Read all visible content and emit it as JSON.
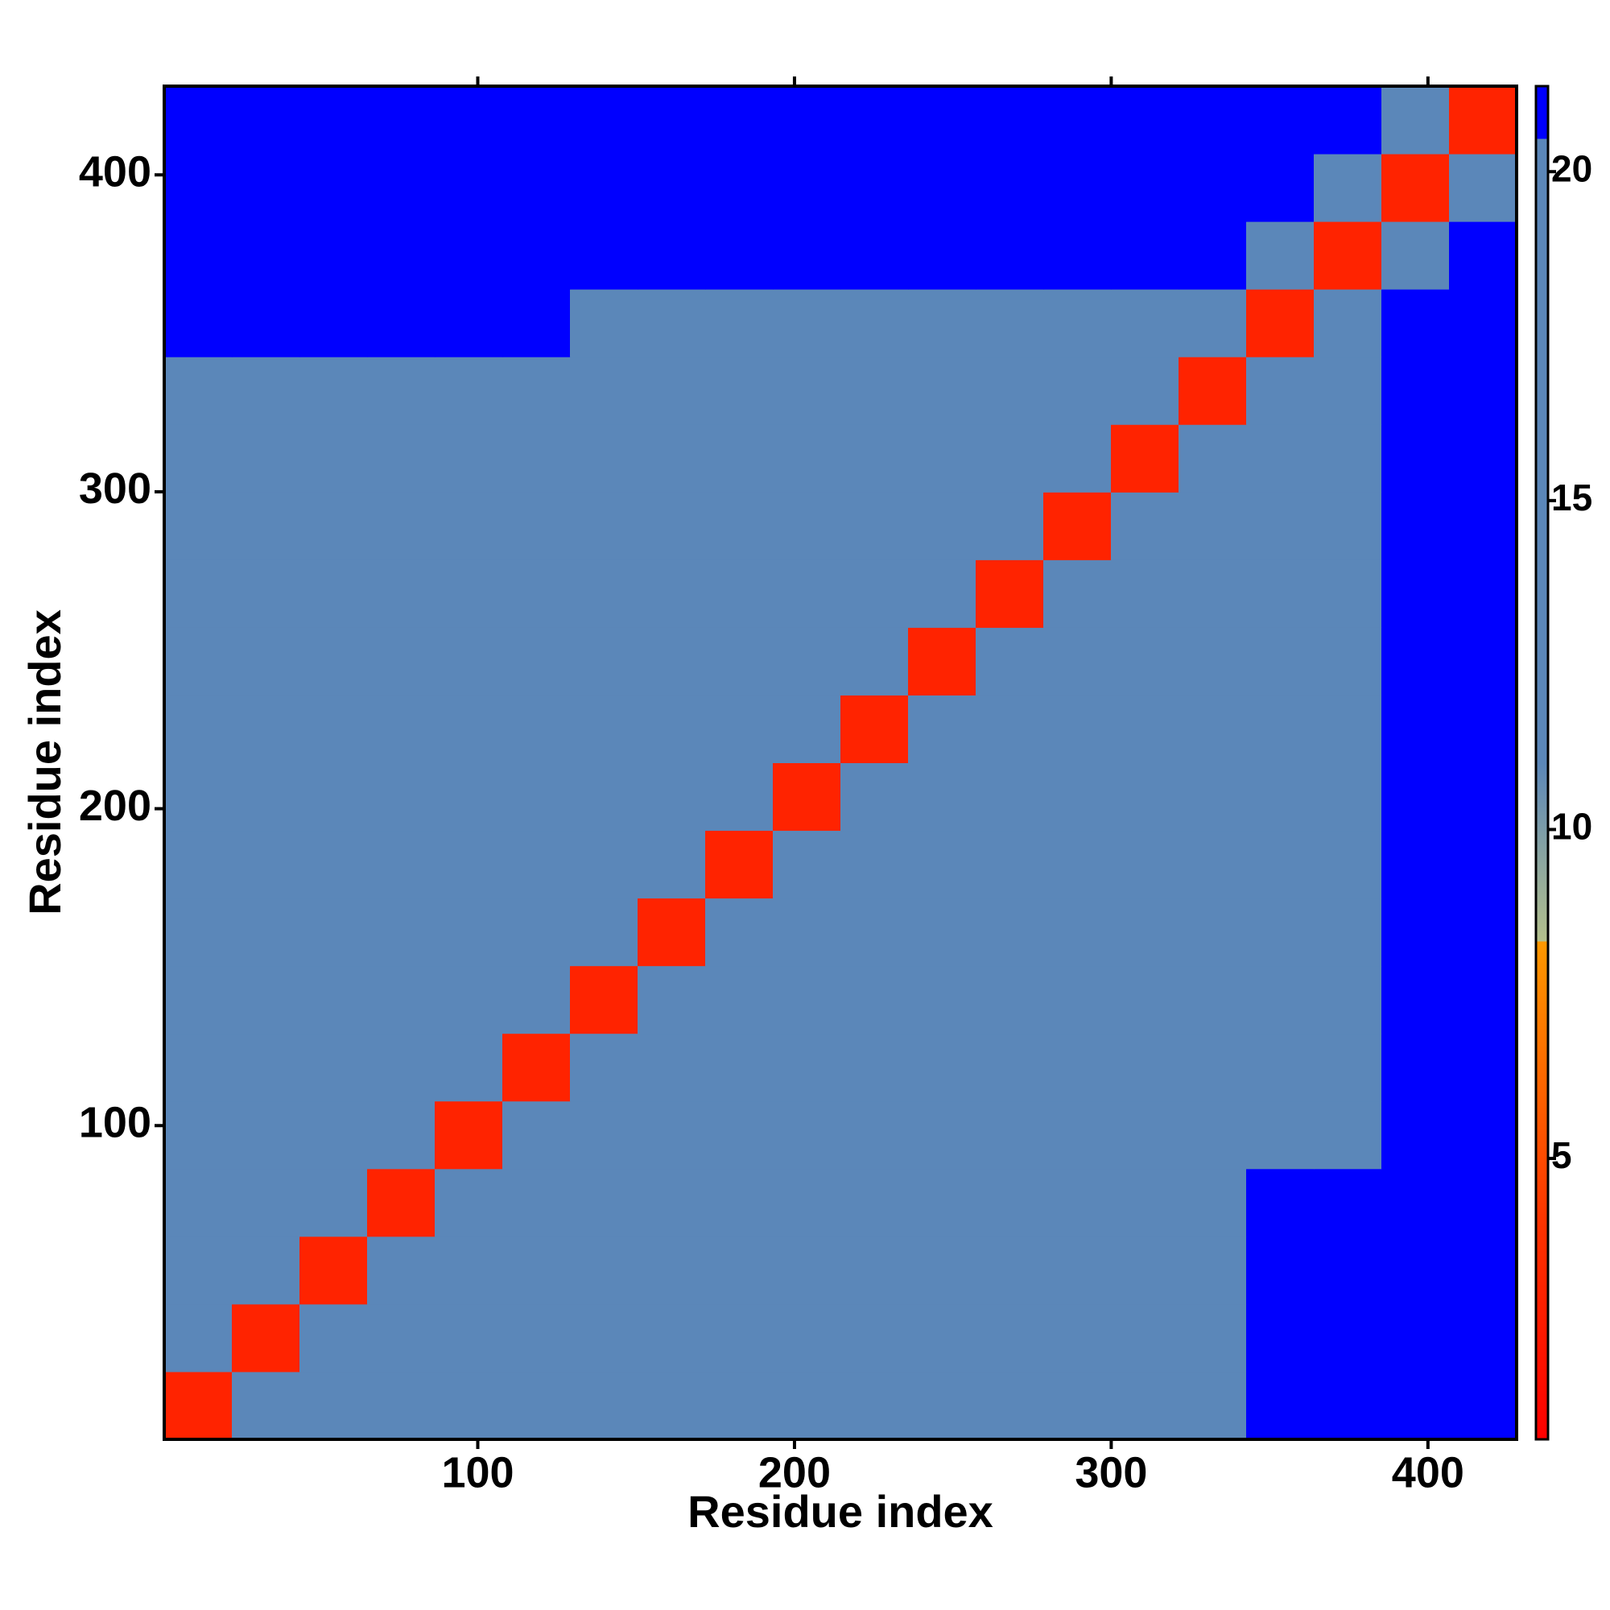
{
  "chart_data": {
    "type": "heatmap",
    "x_label": "Residue index",
    "y_label": "Residue index",
    "xlim": [
      1,
      428
    ],
    "ylim": [
      1,
      428
    ],
    "xticks": [
      100,
      200,
      300,
      400
    ],
    "yticks": [
      100,
      200,
      300,
      400
    ],
    "xbins": [
      1,
      22.35,
      43.7,
      65.05,
      86.4,
      107.75,
      129.1,
      150.45,
      171.8,
      193.15,
      214.5,
      235.85,
      257.2,
      278.55,
      299.9,
      321.25,
      342.6,
      363.95,
      385.3,
      406.65,
      428
    ],
    "ybins": [
      1,
      22.35,
      43.7,
      65.05,
      86.4,
      107.75,
      129.1,
      150.45,
      171.8,
      193.15,
      214.5,
      235.85,
      257.2,
      278.55,
      299.9,
      321.25,
      342.6,
      363.95,
      385.3,
      406.65,
      428
    ],
    "z": [
      [
        3,
        11,
        17,
        17,
        17,
        17,
        17,
        17,
        17,
        17,
        17,
        17,
        17,
        17,
        17,
        19,
        21,
        21,
        21,
        21
      ],
      [
        11,
        3,
        11,
        17,
        17,
        17,
        17,
        17,
        17,
        17,
        17,
        17,
        17,
        17,
        17,
        19,
        21,
        21,
        21,
        21
      ],
      [
        17,
        11,
        3,
        11,
        17,
        17,
        17,
        17,
        17,
        17,
        17,
        17,
        17,
        17,
        17,
        19,
        21,
        21,
        21,
        21
      ],
      [
        17,
        17,
        11,
        3,
        11,
        17,
        17,
        17,
        17,
        17,
        17,
        17,
        17,
        17,
        17,
        19,
        21,
        21,
        21,
        21
      ],
      [
        17,
        17,
        17,
        11,
        3,
        11,
        17,
        17,
        17,
        17,
        17,
        17,
        17,
        17,
        17,
        17,
        17,
        17,
        21,
        21
      ],
      [
        17,
        17,
        17,
        17,
        11,
        3,
        11,
        17,
        17,
        17,
        17,
        17,
        17,
        17,
        17,
        17,
        17,
        17,
        21,
        21
      ],
      [
        17,
        17,
        17,
        17,
        17,
        11,
        3,
        11,
        17,
        17,
        17,
        17,
        17,
        17,
        17,
        17,
        17,
        17,
        21,
        21
      ],
      [
        17,
        17,
        17,
        17,
        17,
        17,
        11,
        3,
        11,
        17,
        17,
        17,
        17,
        17,
        17,
        17,
        17,
        17,
        21,
        21
      ],
      [
        17,
        17,
        17,
        17,
        17,
        17,
        17,
        11,
        3,
        11,
        17,
        17,
        17,
        17,
        17,
        17,
        17,
        17,
        21,
        21
      ],
      [
        17,
        17,
        17,
        17,
        17,
        17,
        17,
        17,
        11,
        3,
        11,
        17,
        17,
        17,
        17,
        17,
        17,
        17,
        21,
        21
      ],
      [
        17,
        17,
        17,
        17,
        17,
        17,
        17,
        17,
        17,
        11,
        3,
        11,
        17,
        17,
        17,
        17,
        17,
        17,
        21,
        21
      ],
      [
        17,
        17,
        17,
        17,
        17,
        17,
        17,
        17,
        17,
        17,
        11,
        3,
        11,
        17,
        17,
        17,
        17,
        17,
        21,
        21
      ],
      [
        17,
        17,
        17,
        17,
        17,
        17,
        17,
        17,
        17,
        17,
        17,
        11,
        3,
        11,
        17,
        17,
        17,
        17,
        21,
        21
      ],
      [
        17,
        17,
        17,
        17,
        17,
        17,
        17,
        17,
        17,
        17,
        17,
        17,
        11,
        3,
        11,
        17,
        17,
        17,
        21,
        21
      ],
      [
        17,
        17,
        17,
        17,
        17,
        17,
        17,
        17,
        17,
        17,
        17,
        17,
        17,
        11,
        3,
        11,
        17,
        17,
        21,
        21
      ],
      [
        17,
        17,
        17,
        17,
        17,
        17,
        17,
        17,
        17,
        17,
        17,
        17,
        17,
        17,
        11,
        3,
        11,
        17,
        21,
        21
      ],
      [
        21,
        21,
        21,
        21,
        21,
        21,
        17,
        17,
        17,
        17,
        17,
        17,
        17,
        17,
        17,
        11,
        3,
        11,
        21,
        21
      ],
      [
        21,
        21,
        21,
        21,
        21,
        21,
        21,
        21,
        21,
        21,
        21,
        21,
        21,
        21,
        21,
        21,
        11,
        3,
        11,
        21
      ],
      [
        21,
        21,
        21,
        21,
        21,
        21,
        21,
        21,
        21,
        21,
        21,
        21,
        21,
        21,
        21,
        21,
        21,
        11,
        3,
        11
      ],
      [
        21,
        21,
        21,
        21,
        21,
        21,
        21,
        21,
        21,
        21,
        21,
        21,
        21,
        21,
        21,
        21,
        21,
        21,
        11,
        3
      ]
    ],
    "colorscale": [
      [
        0.73,
        "#ff0000"
      ],
      [
        4,
        "#ff3300"
      ],
      [
        8.3,
        "#ff9900"
      ],
      [
        8.3,
        "#b4c08c"
      ],
      [
        11,
        "#5b87b9"
      ],
      [
        20.5,
        "#5b87b9"
      ],
      [
        20.5,
        "#0000ff"
      ],
      [
        21.3,
        "#0000ff"
      ]
    ],
    "clim": [
      0.73,
      21.3
    ],
    "cticks": [
      5,
      10,
      15,
      20
    ]
  }
}
